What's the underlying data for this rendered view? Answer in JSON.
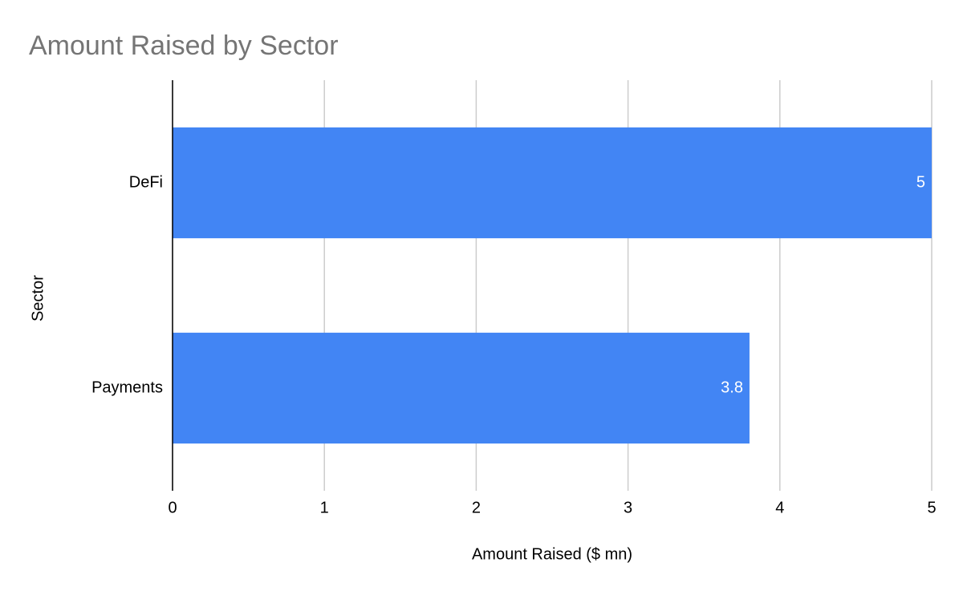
{
  "chart_data": {
    "type": "bar",
    "orientation": "horizontal",
    "title": "Amount Raised by Sector",
    "x_label": "Amount Raised ($ mn)",
    "y_label": "Sector",
    "categories": [
      "DeFi",
      "Payments"
    ],
    "values": [
      5,
      3.8
    ],
    "color": "#4285f4",
    "xlim": [
      0,
      5
    ],
    "xticks": [
      0,
      1,
      2,
      3,
      4,
      5
    ],
    "grid": true
  }
}
